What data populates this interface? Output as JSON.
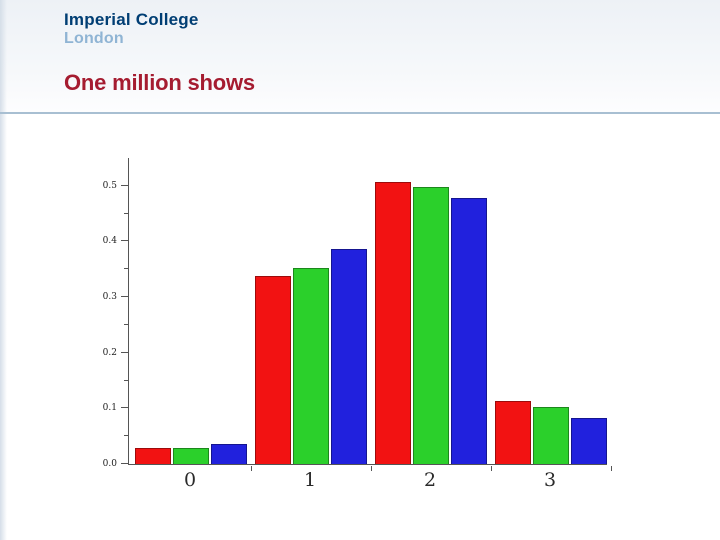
{
  "brand": {
    "line1": "Imperial College",
    "line2": "London"
  },
  "slide": {
    "title": "One million shows"
  },
  "colors": {
    "accent_title": "#a51c30",
    "brand_primary": "#003e74",
    "brand_secondary": "#8fb4d4",
    "divider": "#a8bfd2",
    "axis": "#555555"
  },
  "chart_data": {
    "type": "bar",
    "title": "",
    "xlabel": "",
    "ylabel": "",
    "categories": [
      "0",
      "1",
      "2",
      "3"
    ],
    "series": [
      {
        "name": "red",
        "color": "#f21212",
        "values": [
          0.028,
          0.338,
          0.507,
          0.114
        ]
      },
      {
        "name": "green",
        "color": "#2bd02b",
        "values": [
          0.029,
          0.353,
          0.498,
          0.103
        ]
      },
      {
        "name": "blue",
        "color": "#2121dd",
        "values": [
          0.036,
          0.386,
          0.479,
          0.083
        ]
      }
    ],
    "ylim": [
      0,
      0.55
    ],
    "yticks": [
      0,
      0.1,
      0.2,
      0.3,
      0.4,
      0.5
    ],
    "ytick_labels": [
      "0.0",
      "0.1",
      "0.2",
      "0.3",
      "0.4",
      "0.5"
    ],
    "minor_ticks_between_majors": true,
    "grid": false,
    "legend": "none",
    "bar_grouping": "grouped"
  }
}
